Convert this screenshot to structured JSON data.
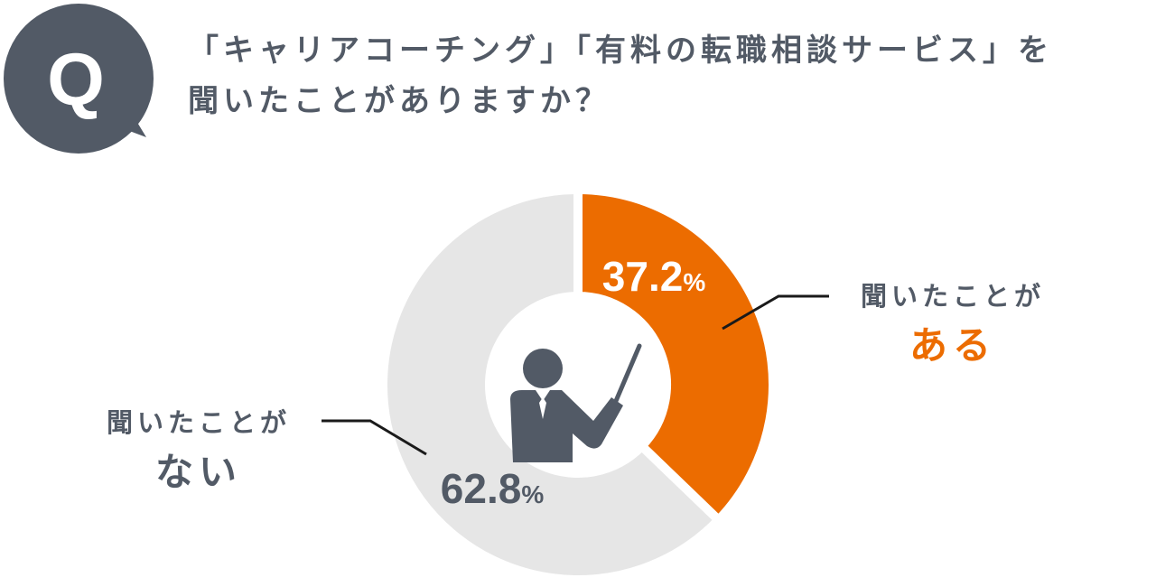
{
  "question": {
    "badge": "Q",
    "line1": "「キャリアコーチング」「有料の転職相談サービス」を",
    "line2": "聞いたことがありますか？"
  },
  "colors": {
    "accent": "#ec6c00",
    "dark": "#525a66",
    "light": "#e6e6e6",
    "background": "#ffffff"
  },
  "chart_data": {
    "type": "pie",
    "variant": "donut",
    "slices": [
      {
        "category": "聞いたことがある",
        "label_line1": "聞いたことが",
        "label_line2": "ある",
        "value": 37.2,
        "value_label": "37.2%",
        "color": "#ec6c00"
      },
      {
        "category": "聞いたことがない",
        "label_line1": "聞いたことが",
        "label_line2": "ない",
        "value": 62.8,
        "value_label": "62.8%",
        "color": "#e6e6e6"
      }
    ],
    "center_icon": "presenter-with-pointer-icon"
  }
}
